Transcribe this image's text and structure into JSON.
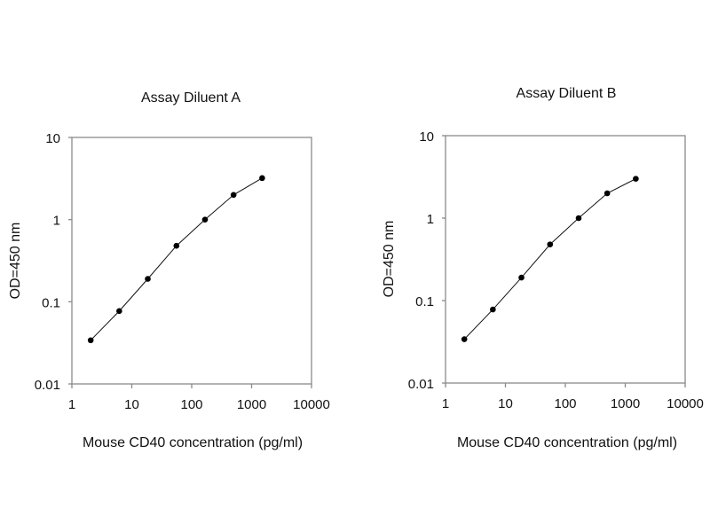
{
  "chart_data": [
    {
      "type": "line",
      "title": "Assay Diluent A",
      "xlabel": "Mouse CD40 concentration (pg/ml)",
      "ylabel": "OD=450 nm",
      "xscale": "log",
      "yscale": "log",
      "xlim": [
        1,
        10000
      ],
      "ylim": [
        0.01,
        10
      ],
      "xticks": [
        "1",
        "10",
        "100",
        "1000",
        "10000"
      ],
      "yticks": [
        "0.01",
        "0.1",
        "1",
        "10"
      ],
      "grid": false,
      "x": [
        2.06,
        6.17,
        18.5,
        55.6,
        166.7,
        500,
        1500
      ],
      "y": [
        0.034,
        0.077,
        0.19,
        0.48,
        1.0,
        2.0,
        3.2
      ]
    },
    {
      "type": "line",
      "title": "Assay Diluent B",
      "xlabel": "Mouse CD40 concentration (pg/ml)",
      "ylabel": "OD=450 nm",
      "xscale": "log",
      "yscale": "log",
      "xlim": [
        1,
        10000
      ],
      "ylim": [
        0.01,
        10
      ],
      "xticks": [
        "1",
        "10",
        "100",
        "1000",
        "10000"
      ],
      "yticks": [
        "0.01",
        "0.1",
        "1",
        "10"
      ],
      "grid": false,
      "x": [
        2.06,
        6.17,
        18.5,
        55.6,
        166.7,
        500,
        1500
      ],
      "y": [
        0.034,
        0.078,
        0.19,
        0.48,
        1.0,
        2.0,
        3.0
      ]
    }
  ]
}
